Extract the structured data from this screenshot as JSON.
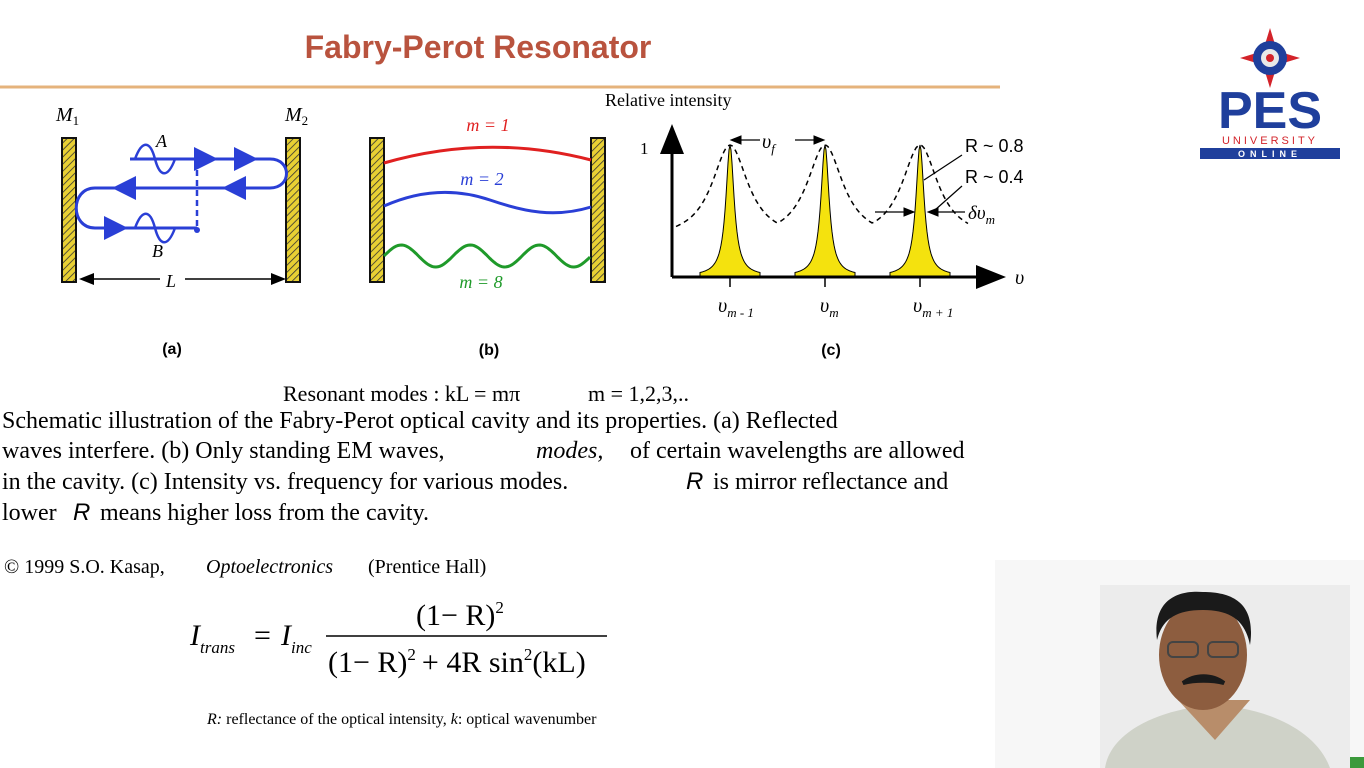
{
  "header": {
    "title": "Fabry-Perot Resonator"
  },
  "logo": {
    "name": "PES",
    "line1": "UNIVERSITY",
    "line2": "ONLINE"
  },
  "figure_a": {
    "mirror1": {
      "label": "M",
      "sub": "1"
    },
    "mirror2": {
      "label": "M",
      "sub": "2"
    },
    "point_a": "A",
    "point_b": "B",
    "length": "L",
    "caption": "(a)"
  },
  "figure_b": {
    "modes": [
      "m = 1",
      "m = 2",
      "m = 8"
    ],
    "caption": "(b)"
  },
  "figure_c": {
    "y_axis": "Relative intensity",
    "y_tick": "1",
    "spacing": {
      "symbol": "υ",
      "sub": "f"
    },
    "curves": [
      "R ~ 0.8",
      "R ~ 0.4"
    ],
    "width": {
      "symbol": "δυ",
      "sub": "m"
    },
    "x_axis": "υ",
    "x_ticks": [
      {
        "symbol": "υ",
        "sub": "m - 1"
      },
      {
        "symbol": "υ",
        "sub": "m"
      },
      {
        "symbol": "υ",
        "sub": "m + 1"
      }
    ],
    "caption": "(c)"
  },
  "resonance": {
    "condition": "Resonant modes : kL = mπ",
    "indices": "m = 1,2,3,.."
  },
  "description": {
    "lines": [
      [
        "Schematic illustration of the Fabry-Perot optical cavity and its properties. (a) Reflected"
      ],
      [
        "waves interfere. (b) Only standing EM waves,",
        "modes,",
        "of certain wavelengths are allowed"
      ],
      [
        "in the cavity. (c) Intensity vs. frequency for various modes.",
        "R",
        "is mirror reflectance and"
      ],
      [
        "lower",
        "R",
        "means higher loss from the cavity."
      ]
    ]
  },
  "citation": {
    "copyright": "© 1999 S.O. Kasap,",
    "book": "Optoelectronics",
    "publisher": "(Prentice Hall)"
  },
  "formula": {
    "lhs": "I",
    "lhs_sub": "trans",
    "equals": "=",
    "rhs": "I",
    "rhs_sub": "inc",
    "numerator": "(1− R)",
    "numerator_exp": "2",
    "denominator": [
      "(1− R)",
      "2",
      "+ 4R sin",
      "2",
      "(kL)"
    ]
  },
  "footnote": {
    "symbol_r": "R:",
    "text_r": "reflectance of the optical intensity,",
    "symbol_k": "k",
    "text_k": ": optical wavenumber"
  }
}
